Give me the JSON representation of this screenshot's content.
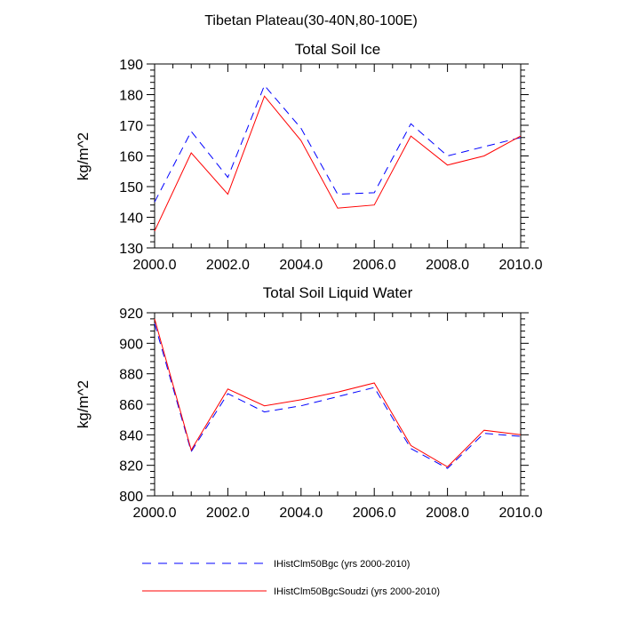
{
  "figure_title": "Tibetan Plateau(30-40N,80-100E)",
  "chart_data": [
    {
      "type": "line",
      "title": "Total Soil Ice",
      "xlabel": "",
      "ylabel": "kg/m^2",
      "xlim": [
        2000,
        2010
      ],
      "ylim": [
        130,
        190
      ],
      "x_ticks": [
        "2000.0",
        "2002.0",
        "2004.0",
        "2006.0",
        "2008.0",
        "2010.0"
      ],
      "y_ticks": [
        "130",
        "140",
        "150",
        "160",
        "170",
        "180",
        "190"
      ],
      "x": [
        2000,
        2001,
        2002,
        2003,
        2004,
        2005,
        2006,
        2007,
        2008,
        2009,
        2010
      ],
      "series": [
        {
          "name": "IHistClm50Bgc (yrs 2000-2010)",
          "color": "#0000ff",
          "style": "dashed",
          "values": [
            145,
            168,
            153,
            183,
            169,
            147.5,
            148,
            170.5,
            160,
            163,
            166
          ]
        },
        {
          "name": "IHistClm50BgcSoudzi (yrs 2000-2010)",
          "color": "#ff0000",
          "style": "solid",
          "values": [
            135.5,
            161,
            147.5,
            179.5,
            165,
            143,
            144,
            166.5,
            157,
            160,
            166.5
          ]
        }
      ]
    },
    {
      "type": "line",
      "title": "Total Soil Liquid Water",
      "xlabel": "",
      "ylabel": "kg/m^2",
      "xlim": [
        2000,
        2010
      ],
      "ylim": [
        800,
        920
      ],
      "x_ticks": [
        "2000.0",
        "2002.0",
        "2004.0",
        "2006.0",
        "2008.0",
        "2010.0"
      ],
      "y_ticks": [
        "800",
        "820",
        "840",
        "860",
        "880",
        "900",
        "920"
      ],
      "x": [
        2000,
        2001,
        2002,
        2003,
        2004,
        2005,
        2006,
        2007,
        2008,
        2009,
        2010
      ],
      "series": [
        {
          "name": "IHistClm50Bgc (yrs 2000-2010)",
          "color": "#0000ff",
          "style": "dashed",
          "values": [
            913,
            829,
            867,
            855,
            859,
            865,
            871,
            831,
            818,
            841,
            839
          ]
        },
        {
          "name": "IHistClm50BgcSoudzi (yrs 2000-2010)",
          "color": "#ff0000",
          "style": "solid",
          "values": [
            916,
            830,
            870,
            859,
            863,
            868,
            874,
            833,
            819,
            843,
            840
          ]
        }
      ]
    }
  ],
  "legend": [
    {
      "label": "IHistClm50Bgc (yrs 2000-2010)",
      "color": "#0000ff",
      "style": "dashed"
    },
    {
      "label": "IHistClm50BgcSoudzi (yrs 2000-2010)",
      "color": "#ff0000",
      "style": "solid"
    }
  ]
}
